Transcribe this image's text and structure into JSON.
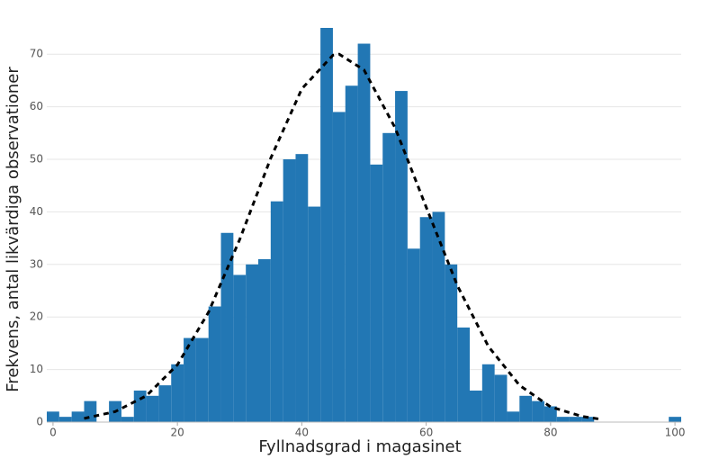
{
  "chart_data": {
    "type": "histogram",
    "xlabel": "Fyllnadsgrad i magasinet",
    "ylabel": "Frekvens, antal likvärdiga observationer",
    "bins": [
      -1,
      1,
      3,
      5,
      7,
      9,
      11,
      13,
      15,
      17,
      19,
      21,
      23,
      25,
      27,
      29,
      31,
      33,
      35,
      37,
      39,
      41,
      43,
      45,
      47,
      49,
      51,
      53,
      55,
      57,
      59,
      61,
      63,
      65,
      67,
      69,
      71,
      73,
      75,
      77,
      79,
      81,
      83,
      85,
      87,
      89,
      91,
      93,
      95,
      97,
      99,
      101
    ],
    "values": [
      2,
      1,
      2,
      4,
      0,
      4,
      1,
      6,
      5,
      7,
      11,
      16,
      16,
      22,
      36,
      28,
      30,
      31,
      42,
      50,
      51,
      41,
      75,
      59,
      64,
      72,
      49,
      55,
      63,
      33,
      39,
      40,
      30,
      18,
      6,
      11,
      9,
      2,
      5,
      4,
      3,
      1,
      1,
      1,
      0,
      0,
      0,
      0,
      0,
      0,
      1
    ],
    "color": "#2277b4",
    "curve": {
      "x": [
        5,
        10,
        15,
        20,
        25,
        30,
        35,
        40,
        45,
        46,
        50,
        55,
        60,
        65,
        70,
        75,
        80,
        85,
        88
      ],
      "values": [
        0.7,
        2.0,
        5.0,
        10.9,
        20.9,
        34.7,
        50.2,
        63.4,
        69.8,
        70,
        67.0,
        56.0,
        40.9,
        26.0,
        14.4,
        7.0,
        2.9,
        1.1,
        0.55
      ],
      "color": "#000000",
      "dashed": true
    },
    "xlim": [
      -1,
      101
    ],
    "ylim": [
      0,
      75
    ],
    "xticks": [
      0,
      20,
      40,
      60,
      80,
      100
    ],
    "yticks": [
      0,
      10,
      20,
      30,
      40,
      50,
      60,
      70
    ],
    "grid": true
  }
}
